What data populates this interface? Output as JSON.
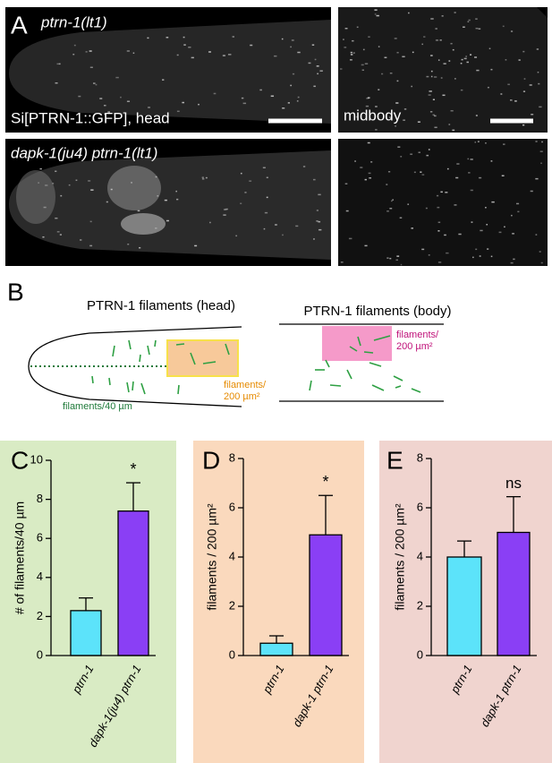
{
  "panel_a": {
    "label": "A",
    "top_genotype": "ptrn-1(lt1)",
    "top_left_caption": "Si[PTRN-1::GFP], head",
    "top_right_caption": "midbody",
    "bottom_genotype": "dapk-1(ju4) ptrn-1(lt1)"
  },
  "panel_b": {
    "label": "B",
    "head_title": "PTRN-1 filaments (head)",
    "body_title": "PTRN-1 filaments (body)",
    "head_area_label": [
      "filaments/",
      "200 µm²"
    ],
    "head_line_label": "filaments/40 µm",
    "body_area_label": [
      "filaments/",
      "200 µm²"
    ]
  },
  "chart_data": [
    {
      "type": "bar",
      "label": "C",
      "ylabel": "# of filaments/40 µm",
      "categories": [
        "ptrn-1",
        "dapk-1(ju4) ptrn-1"
      ],
      "values": [
        2.3,
        7.4
      ],
      "errors": [
        0.65,
        1.45
      ],
      "colors": [
        "#5ce3fa",
        "#8a3ff5"
      ],
      "background": "#d9ebc4",
      "annotation": "*",
      "ylim": [
        0,
        10
      ],
      "yticks": [
        0,
        2,
        4,
        6,
        8,
        10
      ]
    },
    {
      "type": "bar",
      "label": "D",
      "ylabel": "filaments / 200 µm²",
      "categories": [
        "ptrn-1",
        "dapk-1 ptrn-1"
      ],
      "values": [
        0.5,
        4.9
      ],
      "errors": [
        0.3,
        1.6
      ],
      "colors": [
        "#5ce3fa",
        "#8a3ff5"
      ],
      "background": "#fad9bd",
      "annotation": "*",
      "ylim": [
        0,
        8
      ],
      "yticks": [
        0,
        2,
        4,
        6,
        8
      ]
    },
    {
      "type": "bar",
      "label": "E",
      "ylabel": "filaments / 200 µm²",
      "categories": [
        "ptrn-1",
        "dapk-1 ptrn-1"
      ],
      "values": [
        4.0,
        5.0
      ],
      "errors": [
        0.65,
        1.45
      ],
      "colors": [
        "#5ce3fa",
        "#8a3ff5"
      ],
      "background": "#f0d4cf",
      "annotation": "ns",
      "ylim": [
        0,
        8
      ],
      "yticks": [
        0,
        2,
        4,
        6,
        8
      ]
    }
  ]
}
